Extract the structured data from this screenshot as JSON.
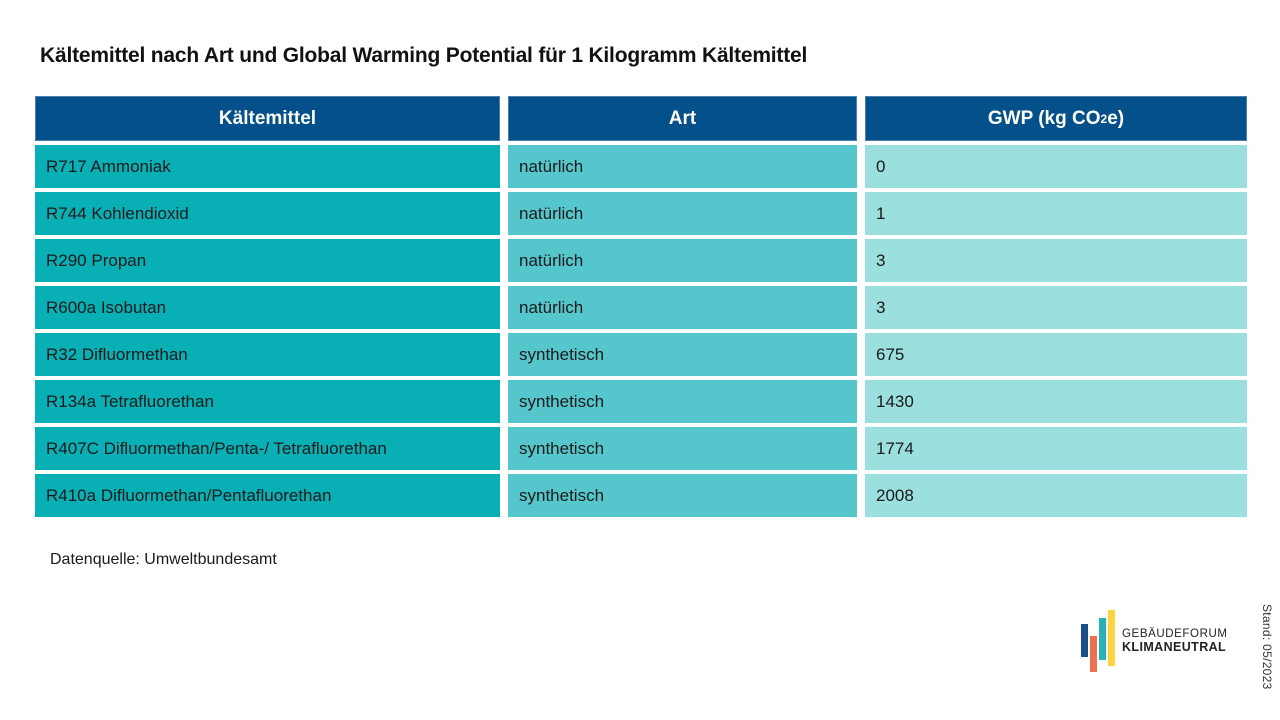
{
  "title": "Kältemittel nach Art und Global Warming Potential für 1 Kilogramm Kältemittel",
  "table": {
    "headers": {
      "col1": "Kältemittel",
      "col2": "Art",
      "gwp_prefix": "GWP (kg CO",
      "gwp_sub": "2",
      "gwp_suffix": "e)"
    },
    "rows": [
      {
        "name": "R717 Ammoniak",
        "art": "natürlich",
        "gwp": "0"
      },
      {
        "name": "R744 Kohlendioxid",
        "art": "natürlich",
        "gwp": "1"
      },
      {
        "name": "R290 Propan",
        "art": "natürlich",
        "gwp": "3"
      },
      {
        "name": "R600a Isobutan",
        "art": "natürlich",
        "gwp": "3"
      },
      {
        "name": "R32 Difluormethan",
        "art": "synthetisch",
        "gwp": "675"
      },
      {
        "name": "R134a Tetrafluorethan",
        "art": "synthetisch",
        "gwp": "1430"
      },
      {
        "name": "R407C Difluormethan/Penta-/ Tetrafluorethan",
        "art": "synthetisch",
        "gwp": "1774"
      },
      {
        "name": "R410a Difluormethan/Pentafluorethan",
        "art": "synthetisch",
        "gwp": "2008"
      }
    ]
  },
  "source": "Datenquelle: Umweltbundesamt",
  "stand": "Stand: 05/2023",
  "logo": {
    "line1": "GEBÄUDEFORUM",
    "line2": "KLIMANEUTRAL"
  },
  "colors": {
    "header_bg": "#04508a",
    "col1_bg": "#08b0b6",
    "col2_bg": "#55c6cc",
    "col3_bg": "#9cdfdf",
    "logo_blue": "#1d4e89",
    "logo_orange": "#ed7051",
    "logo_teal": "#29b1b4",
    "logo_yellow": "#ffd23f"
  },
  "chart_data": {
    "type": "table",
    "title": "Kältemittel nach Art und Global Warming Potential für 1 Kilogramm Kältemittel",
    "columns": [
      "Kältemittel",
      "Art",
      "GWP (kg CO2e)"
    ],
    "rows": [
      [
        "R717 Ammoniak",
        "natürlich",
        0
      ],
      [
        "R744 Kohlendioxid",
        "natürlich",
        1
      ],
      [
        "R290 Propan",
        "natürlich",
        3
      ],
      [
        "R600a Isobutan",
        "natürlich",
        3
      ],
      [
        "R32 Difluormethan",
        "synthetisch",
        675
      ],
      [
        "R134a Tetrafluorethan",
        "synthetisch",
        1430
      ],
      [
        "R407C Difluormethan/Penta-/ Tetrafluorethan",
        "synthetisch",
        1774
      ],
      [
        "R410a Difluormethan/Pentafluorethan",
        "synthetisch",
        2008
      ]
    ],
    "source": "Datenquelle: Umweltbundesamt"
  }
}
